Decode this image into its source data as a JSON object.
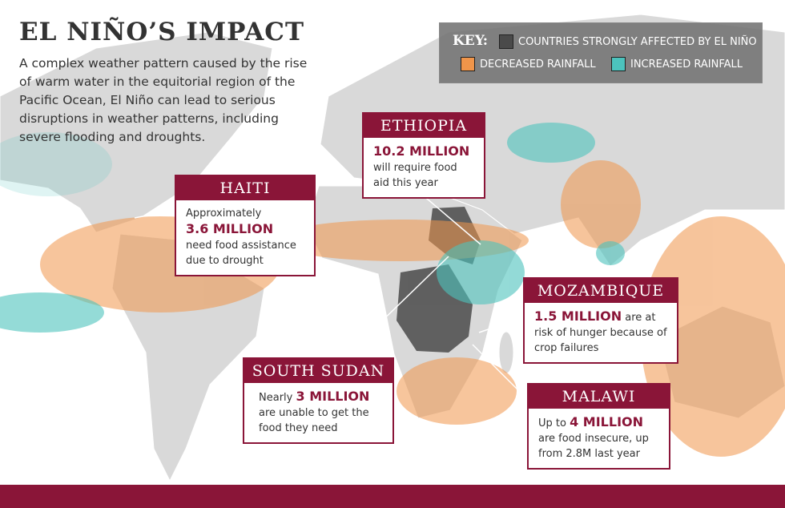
{
  "header": {
    "title": "EL NIÑO’S IMPACT",
    "description": "A complex weather pattern caused by the rise of warm water in the equitorial region of the Pacific Ocean, El Niño can lead to serious disruptions in weather patterns, including severe flooding and droughts."
  },
  "key": {
    "label": "KEY:",
    "items": [
      {
        "label": "COUNTRIES STRONGLY AFFECTED BY EL NIÑO",
        "color": "#4a4a4a"
      },
      {
        "label": "DECREASED RAINFALL",
        "color": "#f0954a"
      },
      {
        "label": "INCREASED RAINFALL",
        "color": "#4cc3bd"
      }
    ]
  },
  "callouts": {
    "ethiopia": {
      "title": "ETHIOPIA",
      "highlight": "10.2 MILLION",
      "rest": "will require food aid this year"
    },
    "haiti": {
      "title": "HAITI",
      "lead": "Approximately",
      "highlight": "3.6 MILLION",
      "rest": "need food assistance due to drought"
    },
    "south_sudan": {
      "title": "SOUTH SUDAN",
      "lead": "Nearly",
      "highlight": "3 MILLION",
      "rest": "are unable to get the food they need"
    },
    "mozambique": {
      "title": "MOZAMBIQUE",
      "highlight": "1.5 MILLION",
      "rest": "are at risk of hunger because of crop failures"
    },
    "malawi": {
      "title": "MALAWI",
      "lead": "Up to",
      "highlight": "4 MILLION",
      "rest": "are food insecure, up from 2.8M last year"
    }
  }
}
